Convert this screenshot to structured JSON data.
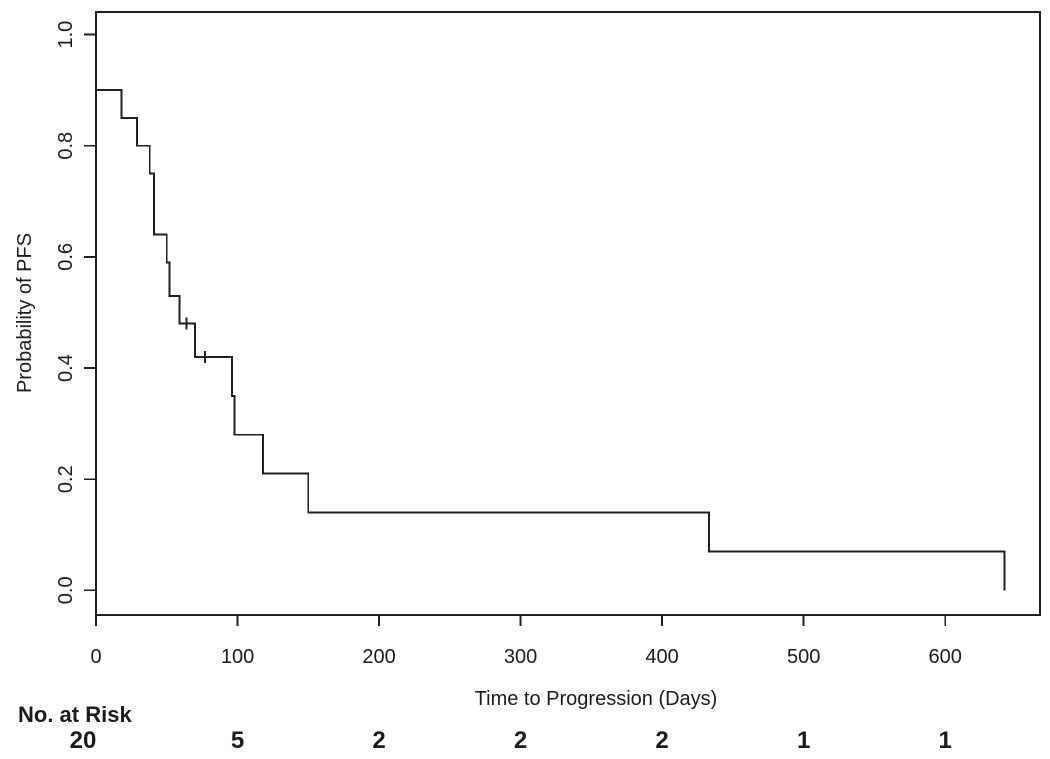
{
  "figure": {
    "x_axis_title": "Time to Progression (Days)",
    "y_axis_title": "Probability of PFS"
  },
  "chart_data": {
    "type": "line",
    "subtype": "kaplan-meier-step",
    "title": "",
    "xlabel": "Time to Progression (Days)",
    "ylabel": "Probability of PFS",
    "xlim": [
      0,
      667
    ],
    "ylim": [
      -0.0444,
      1.0407
    ],
    "x_ticks": [
      0,
      100,
      200,
      300,
      400,
      500,
      600
    ],
    "y_ticks": [
      "0.0",
      "0.2",
      "0.4",
      "0.6",
      "0.8",
      "1.0"
    ],
    "grid": false,
    "legend": "none",
    "line_color": "#1f1f1f",
    "background": "#ffffff",
    "series": [
      {
        "name": "PFS",
        "start": {
          "t": 0,
          "s": 0.9
        },
        "drops": [
          {
            "t": 18,
            "s": 0.85
          },
          {
            "t": 29,
            "s": 0.8
          },
          {
            "t": 38,
            "s": 0.75
          },
          {
            "t": 41,
            "s": 0.64
          },
          {
            "t": 50,
            "s": 0.59
          },
          {
            "t": 52,
            "s": 0.53
          },
          {
            "t": 59,
            "s": 0.48
          },
          {
            "t": 70,
            "s": 0.42
          },
          {
            "t": 96,
            "s": 0.35
          },
          {
            "t": 98,
            "s": 0.28
          },
          {
            "t": 118,
            "s": 0.21
          },
          {
            "t": 150,
            "s": 0.14
          },
          {
            "t": 433,
            "s": 0.07
          },
          {
            "t": 642,
            "s": 0.0
          }
        ],
        "censors": [
          {
            "t": 64,
            "s": 0.48
          },
          {
            "t": 77,
            "s": 0.42
          }
        ]
      }
    ],
    "risk_table": {
      "label": "No. at Risk",
      "times": [
        0,
        100,
        200,
        300,
        400,
        500,
        600
      ],
      "counts": [
        20,
        5,
        2,
        2,
        2,
        1,
        1
      ]
    }
  }
}
